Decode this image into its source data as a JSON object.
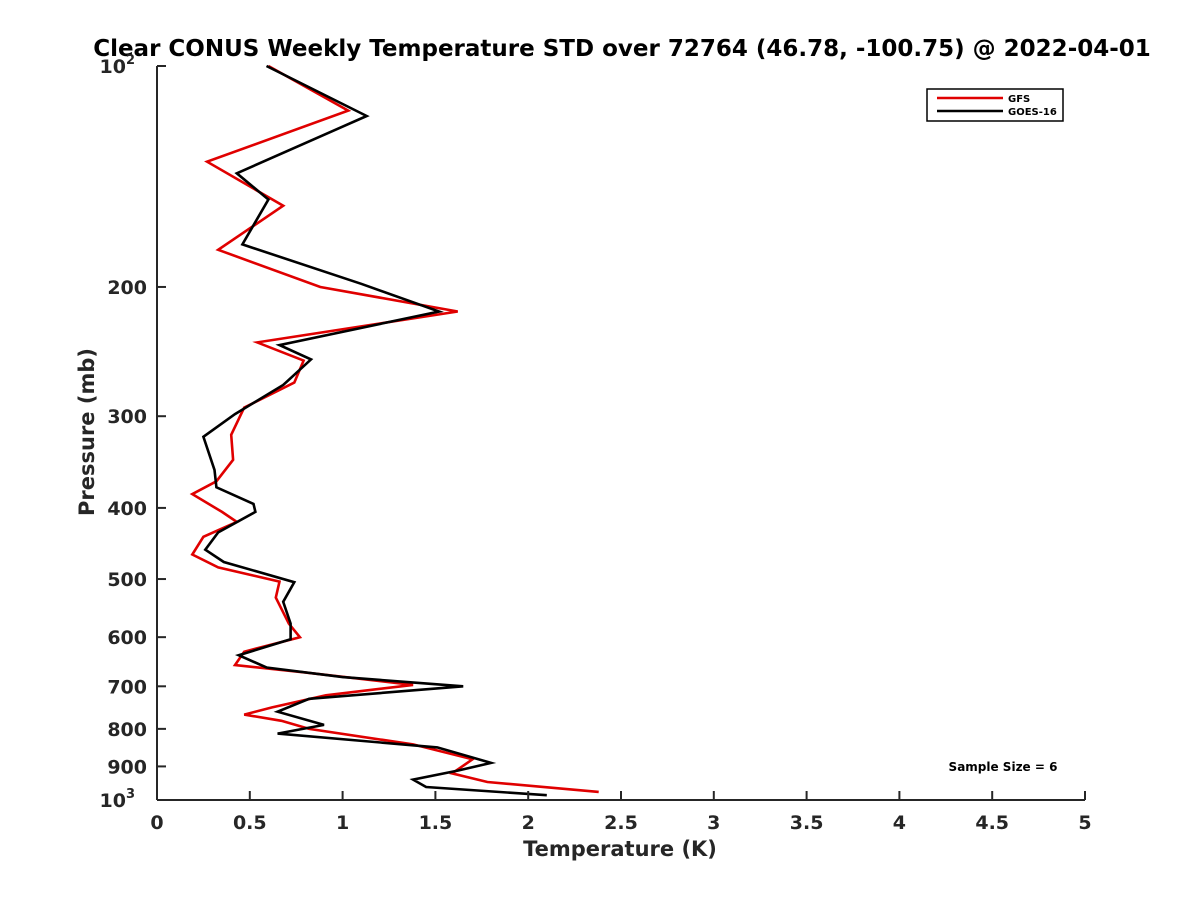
{
  "chart_data": {
    "type": "line",
    "title": "Clear CONUS Weekly Temperature STD over 72764 (46.78, -100.75) @ 2022-04-01",
    "xlabel": "Temperature (K)",
    "ylabel": "Pressure (mb)",
    "xlim": [
      0,
      5
    ],
    "ylim": [
      100,
      1000
    ],
    "yscale": "log",
    "y_reversed": true,
    "grid": false,
    "legend_position": "top-right",
    "x_ticks": [
      {
        "value": 0,
        "label": "0"
      },
      {
        "value": 0.5,
        "label": "0.5"
      },
      {
        "value": 1,
        "label": "1"
      },
      {
        "value": 1.5,
        "label": "1.5"
      },
      {
        "value": 2,
        "label": "2"
      },
      {
        "value": 2.5,
        "label": "2.5"
      },
      {
        "value": 3,
        "label": "3"
      },
      {
        "value": 3.5,
        "label": "3.5"
      },
      {
        "value": 4,
        "label": "4"
      },
      {
        "value": 4.5,
        "label": "4.5"
      },
      {
        "value": 5,
        "label": "5"
      }
    ],
    "y_ticks": [
      {
        "value": 100,
        "label": "10",
        "sup": "2"
      },
      {
        "value": 200,
        "label": "200"
      },
      {
        "value": 300,
        "label": "300"
      },
      {
        "value": 400,
        "label": "400"
      },
      {
        "value": 500,
        "label": "500"
      },
      {
        "value": 600,
        "label": "600"
      },
      {
        "value": 700,
        "label": "700"
      },
      {
        "value": 800,
        "label": "800"
      },
      {
        "value": 900,
        "label": "900"
      },
      {
        "value": 1000,
        "label": "10",
        "sup": "3"
      }
    ],
    "annotation": "Sample Size = 6",
    "series": [
      {
        "name": "GFS",
        "color": "#e00000",
        "points": [
          [
            0.6,
            100
          ],
          [
            1.03,
            115
          ],
          [
            0.27,
            135
          ],
          [
            0.68,
            155
          ],
          [
            0.33,
            178
          ],
          [
            0.88,
            200
          ],
          [
            1.62,
            216
          ],
          [
            0.54,
            238
          ],
          [
            0.79,
            252
          ],
          [
            0.74,
            270
          ],
          [
            0.47,
            292
          ],
          [
            0.4,
            318
          ],
          [
            0.41,
            344
          ],
          [
            0.32,
            368
          ],
          [
            0.19,
            383
          ],
          [
            0.35,
            405
          ],
          [
            0.43,
            418
          ],
          [
            0.25,
            438
          ],
          [
            0.19,
            463
          ],
          [
            0.33,
            482
          ],
          [
            0.66,
            504
          ],
          [
            0.64,
            530
          ],
          [
            0.71,
            575
          ],
          [
            0.77,
            600
          ],
          [
            0.47,
            628
          ],
          [
            0.42,
            655
          ],
          [
            0.79,
            670
          ],
          [
            1.38,
            697
          ],
          [
            0.91,
            720
          ],
          [
            0.62,
            748
          ],
          [
            0.47,
            765
          ],
          [
            0.67,
            780
          ],
          [
            0.82,
            800
          ],
          [
            1.38,
            840
          ],
          [
            1.7,
            880
          ],
          [
            1.59,
            920
          ],
          [
            1.78,
            945
          ],
          [
            2.38,
            975
          ]
        ]
      },
      {
        "name": "GOES-16",
        "color": "#000000",
        "points": [
          [
            0.59,
            100
          ],
          [
            1.13,
            117
          ],
          [
            0.43,
            140
          ],
          [
            0.6,
            152
          ],
          [
            0.46,
            175
          ],
          [
            1.1,
            198
          ],
          [
            1.52,
            216
          ],
          [
            0.66,
            240
          ],
          [
            0.83,
            251
          ],
          [
            0.68,
            272
          ],
          [
            0.42,
            298
          ],
          [
            0.25,
            320
          ],
          [
            0.31,
            355
          ],
          [
            0.32,
            375
          ],
          [
            0.52,
            395
          ],
          [
            0.53,
            405
          ],
          [
            0.33,
            432
          ],
          [
            0.26,
            456
          ],
          [
            0.36,
            474
          ],
          [
            0.74,
            505
          ],
          [
            0.68,
            537
          ],
          [
            0.72,
            575
          ],
          [
            0.72,
            604
          ],
          [
            0.44,
            635
          ],
          [
            0.59,
            660
          ],
          [
            1.0,
            680
          ],
          [
            1.65,
            700
          ],
          [
            0.82,
            728
          ],
          [
            0.65,
            758
          ],
          [
            0.9,
            790
          ],
          [
            0.65,
            812
          ],
          [
            1.51,
            848
          ],
          [
            1.8,
            890
          ],
          [
            1.62,
            912
          ],
          [
            1.38,
            938
          ],
          [
            1.45,
            960
          ],
          [
            2.1,
            985
          ]
        ]
      }
    ]
  }
}
